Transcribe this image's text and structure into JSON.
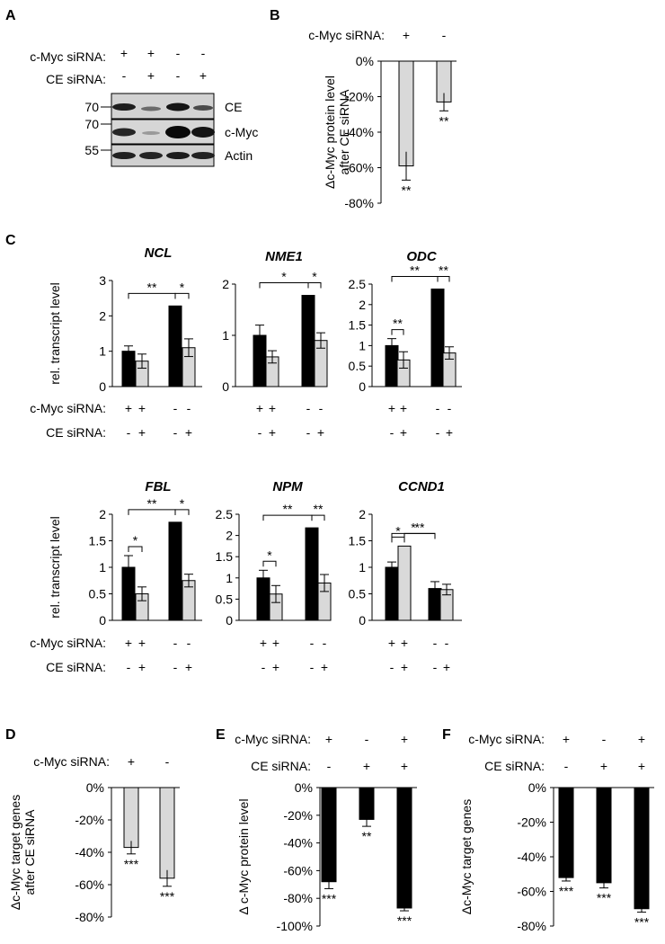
{
  "panels": {
    "A": {
      "letter": "A",
      "row_labels": [
        "c-Myc siRNA:",
        "CE siRNA:"
      ],
      "lanes": [
        [
          "+",
          "-"
        ],
        [
          "+",
          "+"
        ],
        [
          "-",
          "-"
        ],
        [
          "-",
          "+"
        ]
      ],
      "blots": [
        {
          "mw": "70",
          "label": "CE"
        },
        {
          "mw": "70",
          "label": "c-Myc"
        },
        {
          "mw": "55",
          "label": "Actin"
        }
      ]
    },
    "B": {
      "letter": "B"
    },
    "C": {
      "letter": "C"
    },
    "D": {
      "letter": "D"
    },
    "E": {
      "letter": "E"
    },
    "F": {
      "letter": "F"
    }
  },
  "colors": {
    "black_bar": "#000000",
    "grey_bar": "#d9d9d9"
  },
  "chart_data": [
    {
      "id": "B",
      "type": "bar",
      "ylabel": [
        "Δc-Myc protein level",
        "after CE siRNA"
      ],
      "yticks": [
        0,
        -20,
        -40,
        -60,
        -80
      ],
      "ytick_labels": [
        "0%",
        "-20%",
        "-40%",
        "-60%",
        "-80%"
      ],
      "ylim": [
        -80,
        0
      ],
      "conditions": [
        {
          "label": "c-Myc siRNA:",
          "values": [
            "+",
            "-"
          ]
        }
      ],
      "series": [
        {
          "values": [
            -59,
            -23
          ],
          "errors": [
            8,
            5
          ],
          "colors": [
            "#d9d9d9",
            "#d9d9d9"
          ],
          "sig": [
            "**",
            "**"
          ]
        }
      ]
    },
    {
      "id": "NCL",
      "type": "bar",
      "title": "NCL",
      "ylabel": [
        "rel. transcript level"
      ],
      "yticks": [
        0,
        1,
        2,
        3
      ],
      "ytick_labels": [
        "0",
        "1",
        "2",
        "3"
      ],
      "ylim": [
        0,
        3
      ],
      "values": [
        1.0,
        0.72,
        2.28,
        1.1
      ],
      "errors": [
        0.15,
        0.2,
        0.0,
        0.25
      ],
      "brackets": [
        {
          "from": 0,
          "to": 2,
          "text": "**"
        },
        {
          "from": 2,
          "to": 3,
          "text": "*"
        }
      ],
      "conditions": [
        {
          "label": "c-Myc siRNA:",
          "values": [
            "+",
            "+",
            "-",
            "-"
          ]
        },
        {
          "label": "CE siRNA:",
          "values": [
            "-",
            "+",
            "-",
            "+"
          ]
        }
      ]
    },
    {
      "id": "NME1",
      "type": "bar",
      "title": "NME1",
      "ylabel": [],
      "yticks": [
        0,
        1,
        2
      ],
      "ytick_labels": [
        "0",
        "1",
        "2"
      ],
      "ylim": [
        0,
        2
      ],
      "values": [
        1.0,
        0.58,
        1.78,
        0.9
      ],
      "errors": [
        0.2,
        0.12,
        0.0,
        0.15
      ],
      "brackets": [
        {
          "from": 0,
          "to": 2,
          "text": "*"
        },
        {
          "from": 2,
          "to": 3,
          "text": "*"
        }
      ],
      "conditions": [
        {
          "label": "",
          "values": [
            "+",
            "+",
            "-",
            "-"
          ]
        },
        {
          "label": "",
          "values": [
            "-",
            "+",
            "-",
            "+"
          ]
        }
      ]
    },
    {
      "id": "ODC",
      "type": "bar",
      "title": "ODC",
      "ylabel": [],
      "yticks": [
        0,
        0.5,
        1,
        1.5,
        2,
        2.5
      ],
      "ytick_labels": [
        "0",
        "0.5",
        "1",
        "1.5",
        "2",
        "2.5"
      ],
      "ylim": [
        0,
        2.5
      ],
      "values": [
        1.0,
        0.65,
        2.38,
        0.82
      ],
      "errors": [
        0.17,
        0.2,
        0.0,
        0.15
      ],
      "brackets": [
        {
          "from": 0,
          "to": 1,
          "text": "**"
        },
        {
          "from": 0,
          "to": 2,
          "text": "**"
        },
        {
          "from": 2,
          "to": 3,
          "text": "**"
        }
      ],
      "conditions": [
        {
          "label": "",
          "values": [
            "+",
            "+",
            "-",
            "-"
          ]
        },
        {
          "label": "",
          "values": [
            "-",
            "+",
            "-",
            "+"
          ]
        }
      ]
    },
    {
      "id": "FBL",
      "type": "bar",
      "title": "FBL",
      "ylabel": [
        "rel. transcript level"
      ],
      "yticks": [
        0,
        0.5,
        1,
        1.5,
        2
      ],
      "ytick_labels": [
        "0",
        "0.5",
        "1",
        "1.5",
        "2"
      ],
      "ylim": [
        0,
        2
      ],
      "values": [
        1.0,
        0.5,
        1.85,
        0.75
      ],
      "errors": [
        0.22,
        0.13,
        0.0,
        0.12
      ],
      "brackets": [
        {
          "from": 0,
          "to": 1,
          "text": "*"
        },
        {
          "from": 0,
          "to": 2,
          "text": "**"
        },
        {
          "from": 2,
          "to": 3,
          "text": "*"
        }
      ],
      "conditions": [
        {
          "label": "c-Myc siRNA:",
          "values": [
            "+",
            "+",
            "-",
            "-"
          ]
        },
        {
          "label": "CE siRNA:",
          "values": [
            "-",
            "+",
            "-",
            "+"
          ]
        }
      ]
    },
    {
      "id": "NPM",
      "type": "bar",
      "title": "NPM",
      "ylabel": [],
      "yticks": [
        0,
        0.5,
        1,
        1.5,
        2,
        2.5
      ],
      "ytick_labels": [
        "0",
        "0.5",
        "1",
        "1.5",
        "2",
        "2.5"
      ],
      "ylim": [
        0,
        2.5
      ],
      "values": [
        1.0,
        0.62,
        2.18,
        0.88
      ],
      "errors": [
        0.18,
        0.2,
        0.0,
        0.2
      ],
      "brackets": [
        {
          "from": 0,
          "to": 1,
          "text": "*"
        },
        {
          "from": 0,
          "to": 2,
          "text": "**"
        },
        {
          "from": 2,
          "to": 3,
          "text": "**"
        }
      ],
      "conditions": [
        {
          "label": "",
          "values": [
            "+",
            "+",
            "-",
            "-"
          ]
        },
        {
          "label": "",
          "values": [
            "-",
            "+",
            "-",
            "+"
          ]
        }
      ]
    },
    {
      "id": "CCND1",
      "type": "bar",
      "title": "CCND1",
      "ylabel": [],
      "yticks": [
        0,
        0.5,
        1,
        1.5,
        2
      ],
      "ytick_labels": [
        "0",
        "0.5",
        "1",
        "1.5",
        "2"
      ],
      "ylim": [
        0,
        2
      ],
      "values": [
        1.0,
        1.4,
        0.6,
        0.58
      ],
      "errors": [
        0.1,
        0.0,
        0.13,
        0.1
      ],
      "brackets": [
        {
          "from": 0,
          "to": 1,
          "text": "*"
        },
        {
          "from": 0,
          "to": 2,
          "text": "*"
        },
        {
          "from": 1,
          "to": 2,
          "text": "**"
        }
      ],
      "conditions": [
        {
          "label": "",
          "values": [
            "+",
            "+",
            "-",
            "-"
          ]
        },
        {
          "label": "",
          "values": [
            "-",
            "+",
            "-",
            "+"
          ]
        }
      ]
    },
    {
      "id": "D",
      "type": "bar",
      "ylabel": [
        "Δc-Myc target genes",
        "after CE siRNA"
      ],
      "yticks": [
        0,
        -20,
        -40,
        -60,
        -80
      ],
      "ytick_labels": [
        "0%",
        "-20%",
        "-40%",
        "-60%",
        "-80%"
      ],
      "ylim": [
        -80,
        0
      ],
      "conditions": [
        {
          "label": "c-Myc siRNA:",
          "values": [
            "+",
            "-"
          ]
        }
      ],
      "series": [
        {
          "values": [
            -37,
            -56
          ],
          "errors": [
            4,
            5
          ],
          "colors": [
            "#d9d9d9",
            "#d9d9d9"
          ],
          "sig": [
            "***",
            "***"
          ]
        }
      ]
    },
    {
      "id": "E",
      "type": "bar",
      "ylabel": [
        "Δ c-Myc protein level"
      ],
      "yticks": [
        0,
        -20,
        -40,
        -60,
        -80,
        -100
      ],
      "ytick_labels": [
        "0%",
        "-20%",
        "-40%",
        "-60%",
        "-80%",
        "-100%"
      ],
      "ylim": [
        -100,
        0
      ],
      "conditions": [
        {
          "label": "c-Myc siRNA:",
          "values": [
            "+",
            "-",
            "+"
          ]
        },
        {
          "label": "CE siRNA:",
          "values": [
            "-",
            "+",
            "+"
          ]
        }
      ],
      "series": [
        {
          "values": [
            -68,
            -23,
            -87
          ],
          "errors": [
            5,
            5,
            2
          ],
          "colors": [
            "#000000",
            "#000000",
            "#000000"
          ],
          "sig": [
            "***",
            "**",
            "***"
          ]
        }
      ]
    },
    {
      "id": "F",
      "type": "bar",
      "ylabel": [
        "Δc-Myc target genes"
      ],
      "yticks": [
        0,
        -20,
        -40,
        -60,
        -80
      ],
      "ytick_labels": [
        "0%",
        "-20%",
        "-40%",
        "-60%",
        "-80%"
      ],
      "ylim": [
        -80,
        0
      ],
      "conditions": [
        {
          "label": "c-Myc siRNA:",
          "values": [
            "+",
            "-",
            "+"
          ]
        },
        {
          "label": "CE siRNA:",
          "values": [
            "-",
            "+",
            "+"
          ]
        }
      ],
      "series": [
        {
          "values": [
            -52,
            -55,
            -70
          ],
          "errors": [
            2,
            3,
            2
          ],
          "colors": [
            "#000000",
            "#000000",
            "#000000"
          ],
          "sig": [
            "***",
            "***",
            "***"
          ]
        }
      ]
    }
  ]
}
